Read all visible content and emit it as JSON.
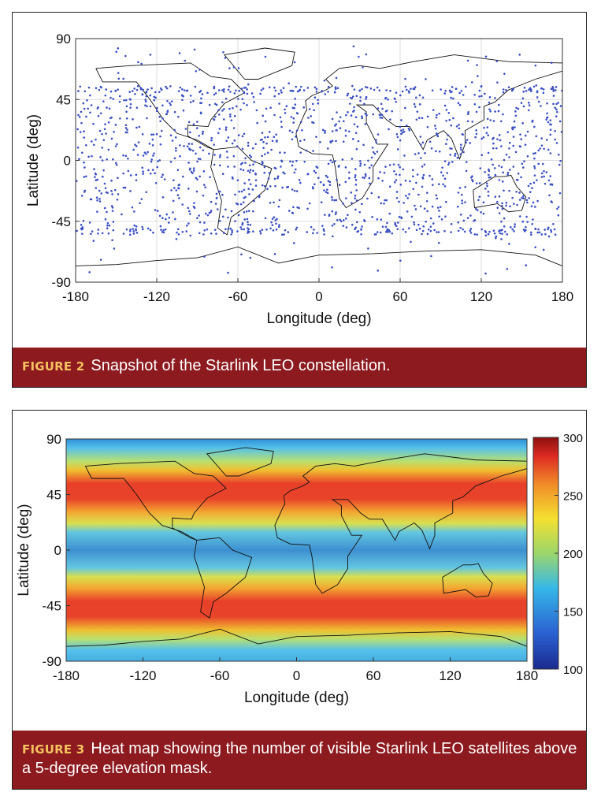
{
  "chart_data": [
    {
      "type": "scatter",
      "xlabel": "Longitude (deg)",
      "ylabel": "Latitude (deg)",
      "xlim": [
        -180,
        180
      ],
      "ylim": [
        -90,
        90
      ],
      "xticks": [
        -180,
        -120,
        -60,
        0,
        60,
        120,
        180
      ],
      "yticks": [
        -90,
        -45,
        0,
        45,
        90
      ],
      "grid": true,
      "color": "#3a4fc0"
    },
    {
      "type": "heatmap",
      "xlabel": "Longitude (deg)",
      "ylabel": "Latitude (deg)",
      "xlim": [
        -180,
        180
      ],
      "ylim": [
        -90,
        90
      ],
      "xticks": [
        -180,
        -120,
        -60,
        0,
        60,
        120,
        180
      ],
      "yticks": [
        -90,
        -45,
        0,
        45,
        90
      ],
      "grid": false,
      "colorbar_lim": [
        100,
        300
      ],
      "colorbar_ticks": [
        100,
        150,
        200,
        250,
        300
      ]
    }
  ],
  "figures": [
    {
      "label": "FIGURE 2",
      "caption": "Snapshot of the Starlink LEO constellation."
    },
    {
      "label": "FIGURE 3",
      "caption": "Heat map showing the number of visible Starlink LEO satellites above a 5-degree elevation mask."
    }
  ]
}
